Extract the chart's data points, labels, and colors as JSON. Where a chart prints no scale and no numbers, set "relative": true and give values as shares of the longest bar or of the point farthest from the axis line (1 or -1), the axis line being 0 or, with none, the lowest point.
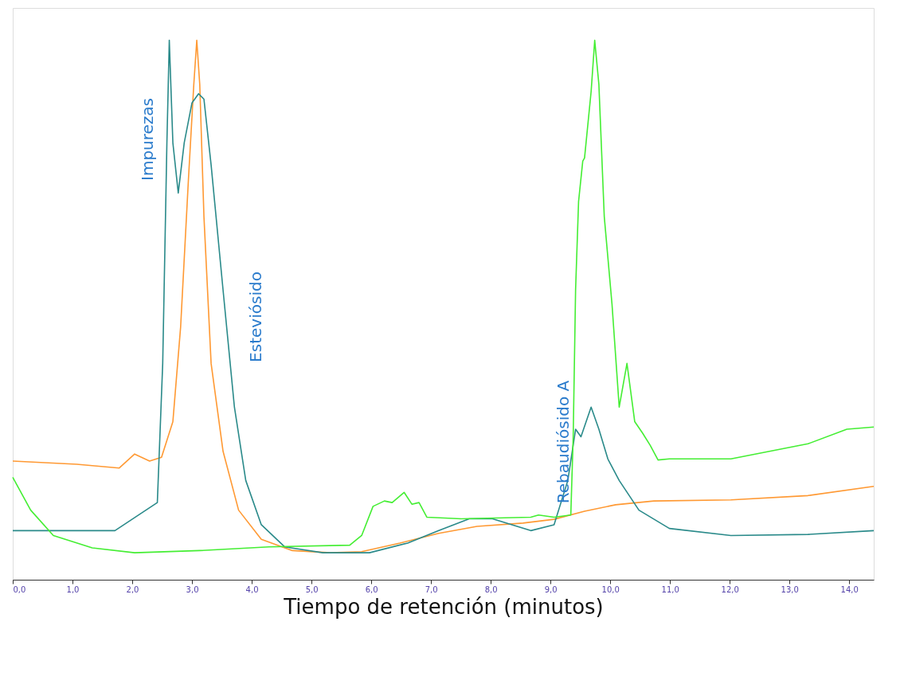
{
  "chart_data": {
    "type": "line",
    "relative": true,
    "xlabel": "Tiempo de retención (minutos)",
    "xlim": [
      0,
      14.41
    ],
    "xticks": [
      {
        "value": 0,
        "label": "0,0"
      },
      {
        "value": 1,
        "label": "1,0"
      },
      {
        "value": 2,
        "label": "2,0"
      },
      {
        "value": 3,
        "label": "3,0"
      },
      {
        "value": 4,
        "label": "4,0"
      },
      {
        "value": 5,
        "label": "5,0"
      },
      {
        "value": 6,
        "label": "6,0"
      },
      {
        "value": 7,
        "label": "7,0"
      },
      {
        "value": 8,
        "label": "8,0"
      },
      {
        "value": 9,
        "label": "9,0"
      },
      {
        "value": 10,
        "label": "10,0"
      },
      {
        "value": 11,
        "label": "11,0"
      },
      {
        "value": 12,
        "label": "12,0"
      },
      {
        "value": 13,
        "label": "13,0"
      },
      {
        "value": 14,
        "label": "14,0"
      }
    ],
    "grid": false,
    "marker": "none",
    "line_style": "solid",
    "series": [
      {
        "color": "#ff9933",
        "x": [
          0,
          1.07,
          1.78,
          2.04,
          2.29,
          2.49,
          2.68,
          2.81,
          2.94,
          3.03,
          3.08,
          3.13,
          3.2,
          3.32,
          3.52,
          3.78,
          4.16,
          4.68,
          5.32,
          5.84,
          6.48,
          7.13,
          7.77,
          8.54,
          9.06,
          9.57,
          10.09,
          10.73,
          12.02,
          13.31,
          14.41
        ],
        "values": [
          0.22,
          0.214,
          0.207,
          0.233,
          0.22,
          0.227,
          0.293,
          0.469,
          0.741,
          0.918,
          1,
          0.918,
          0.673,
          0.401,
          0.238,
          0.129,
          0.075,
          0.054,
          0.05,
          0.052,
          0.068,
          0.086,
          0.099,
          0.105,
          0.112,
          0.127,
          0.139,
          0.146,
          0.148,
          0.156,
          0.173
        ]
      },
      {
        "color": "#2a8a8a",
        "x": [
          0,
          1.71,
          2.42,
          2.51,
          2.58,
          2.62,
          2.68,
          2.77,
          2.87,
          3.0,
          3.11,
          3.2,
          3.32,
          3.52,
          3.71,
          3.9,
          4.16,
          4.55,
          5.19,
          5.97,
          6.61,
          7.13,
          7.64,
          8.03,
          8.67,
          9.06,
          9.29,
          9.42,
          9.51,
          9.68,
          9.81,
          9.96,
          10.15,
          10.48,
          10.99,
          12.02,
          13.31,
          14.41
        ],
        "values": [
          0.091,
          0.091,
          0.143,
          0.401,
          0.81,
          1,
          0.81,
          0.717,
          0.81,
          0.884,
          0.901,
          0.891,
          0.769,
          0.537,
          0.32,
          0.184,
          0.102,
          0.061,
          0.05,
          0.05,
          0.068,
          0.091,
          0.113,
          0.113,
          0.091,
          0.102,
          0.184,
          0.279,
          0.265,
          0.32,
          0.279,
          0.224,
          0.184,
          0.129,
          0.095,
          0.082,
          0.084,
          0.091
        ]
      },
      {
        "color": "#44ee33",
        "x": [
          0,
          0.3,
          0.68,
          1.33,
          2.04,
          3.13,
          4.29,
          5.64,
          5.84,
          6.03,
          6.22,
          6.35,
          6.55,
          6.68,
          6.8,
          6.93,
          7.51,
          8.67,
          8.8,
          9.06,
          9.34,
          9.38,
          9.42,
          9.47,
          9.54,
          9.57,
          9.68,
          9.74,
          9.81,
          9.9,
          10.03,
          10.15,
          10.28,
          10.41,
          10.54,
          10.67,
          10.8,
          10.99,
          12.02,
          13.31,
          13.96,
          14.41
        ],
        "values": [
          0.19,
          0.129,
          0.082,
          0.059,
          0.05,
          0.054,
          0.061,
          0.064,
          0.082,
          0.136,
          0.146,
          0.143,
          0.162,
          0.14,
          0.143,
          0.116,
          0.113,
          0.116,
          0.12,
          0.116,
          0.12,
          0.265,
          0.537,
          0.701,
          0.776,
          0.782,
          0.905,
          1,
          0.918,
          0.673,
          0.51,
          0.32,
          0.401,
          0.293,
          0.272,
          0.249,
          0.222,
          0.224,
          0.224,
          0.252,
          0.279,
          0.283
        ]
      }
    ],
    "annotations": [
      "Impurezas",
      "Esteviósido",
      "Rebaudiósido A"
    ]
  }
}
